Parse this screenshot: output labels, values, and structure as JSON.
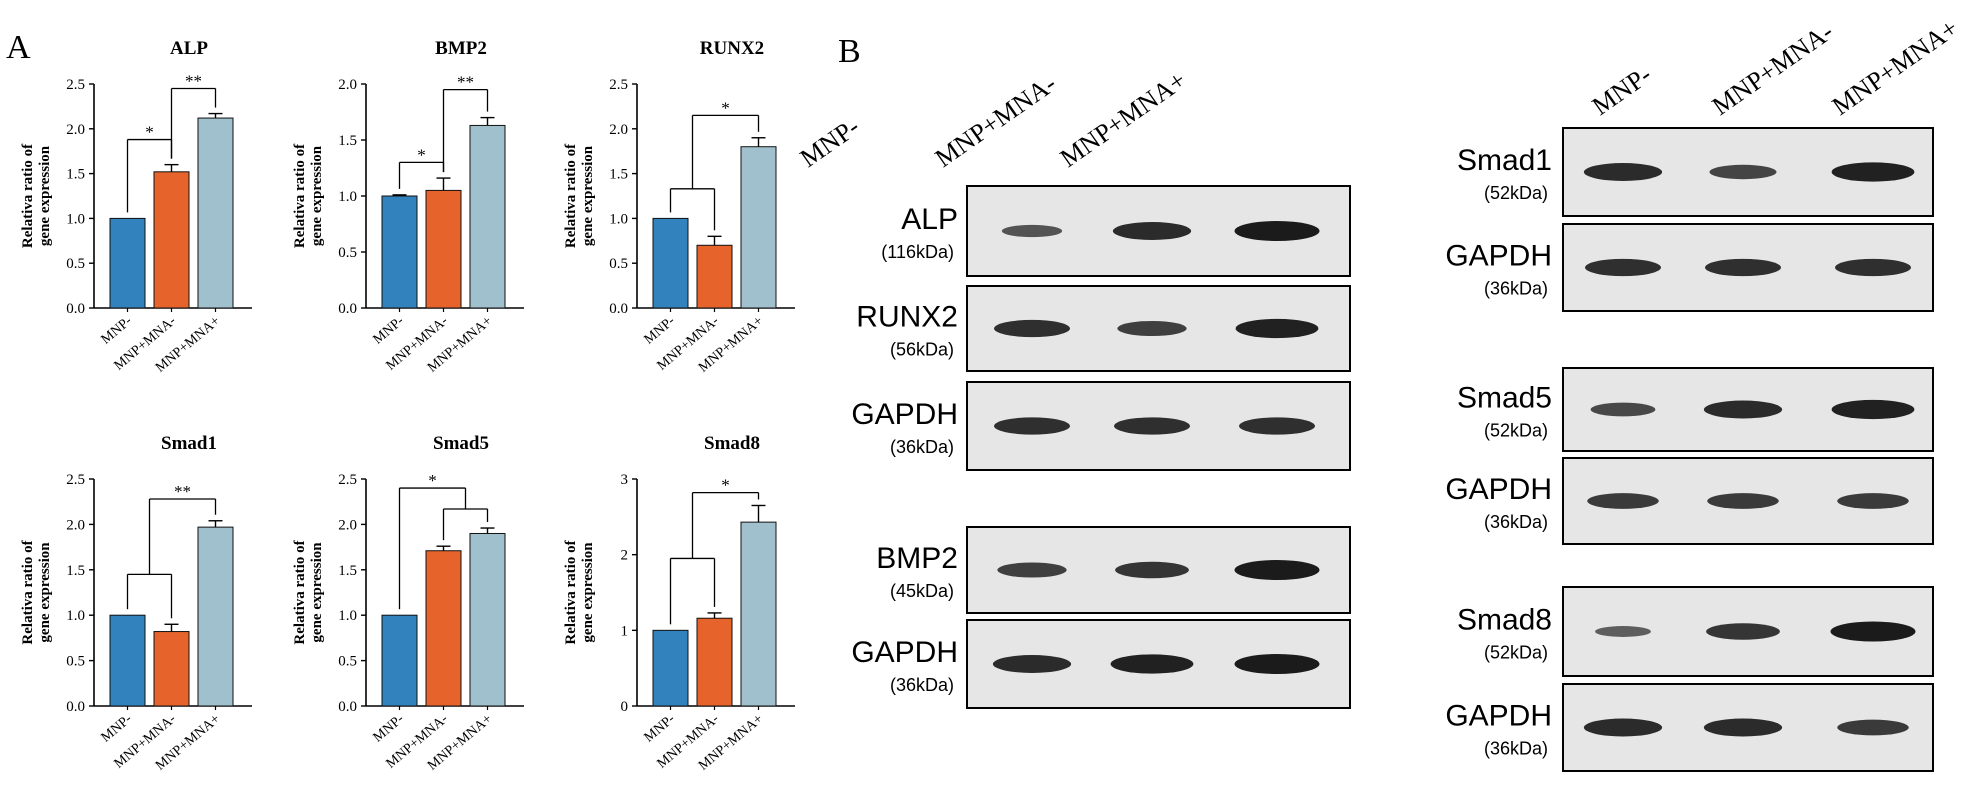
{
  "panel_labels": {
    "a": "A",
    "b": "B"
  },
  "colors": {
    "MNP-": "#3182bd",
    "MNP+MNA-": "#e6642b",
    "MNP+MNA+": "#9fc0cc"
  },
  "chart_data": [
    {
      "type": "bar",
      "title": "ALP",
      "ylabel": "Relativa ratio of gene expression",
      "categories": [
        "MNP-",
        "MNP+MNA-",
        "MNP+MNA+"
      ],
      "values": [
        1.0,
        1.52,
        2.12
      ],
      "errors": [
        0,
        0.08,
        0.05
      ],
      "ylim": [
        0,
        2.5
      ],
      "yticks": [
        "0.0",
        "0.5",
        "1.0",
        "1.5",
        "2.0",
        "2.5"
      ],
      "significance": [
        {
          "label": "*",
          "groups": [
            [
              0
            ],
            [
              1
            ]
          ],
          "level": 1.88
        },
        {
          "label": "**",
          "groups": [
            [
              1
            ],
            [
              2
            ]
          ],
          "level": 2.45
        }
      ]
    },
    {
      "type": "bar",
      "title": "BMP2",
      "ylabel": "Relativa ratio of gene expression",
      "categories": [
        "MNP-",
        "MNP+MNA-",
        "MNP+MNA+"
      ],
      "values": [
        1.0,
        1.05,
        1.63
      ],
      "errors": [
        0.01,
        0.11,
        0.07
      ],
      "ylim": [
        0,
        2.0
      ],
      "yticks": [
        "0.0",
        "0.5",
        "1.0",
        "1.5",
        "2.0"
      ],
      "significance": [
        {
          "label": "*",
          "groups": [
            [
              0
            ],
            [
              1
            ]
          ],
          "level": 1.3
        },
        {
          "label": "**",
          "groups": [
            [
              1
            ],
            [
              2
            ]
          ],
          "level": 1.95
        }
      ]
    },
    {
      "type": "bar",
      "title": "RUNX2",
      "ylabel": "Relativa ratio of gene expression",
      "categories": [
        "MNP-",
        "MNP+MNA-",
        "MNP+MNA+"
      ],
      "values": [
        1.0,
        0.7,
        1.8
      ],
      "errors": [
        0,
        0.1,
        0.1
      ],
      "ylim": [
        0,
        2.5
      ],
      "yticks": [
        "0.0",
        "0.5",
        "1.0",
        "1.5",
        "2.0",
        "2.5"
      ],
      "significance": [
        {
          "label": "*",
          "groups": [
            [
              0,
              1
            ],
            [
              2
            ]
          ],
          "level": 2.15,
          "inner_level": 1.33
        }
      ]
    },
    {
      "type": "bar",
      "title": "Smad1",
      "ylabel": "Relativa ratio of gene expression",
      "categories": [
        "MNP-",
        "MNP+MNA-",
        "MNP+MNA+"
      ],
      "values": [
        1.0,
        0.82,
        1.97
      ],
      "errors": [
        0,
        0.08,
        0.07
      ],
      "ylim": [
        0,
        2.5
      ],
      "yticks": [
        "0.0",
        "0.5",
        "1.0",
        "1.5",
        "2.0",
        "2.5"
      ],
      "significance": [
        {
          "label": "**",
          "groups": [
            [
              0,
              1
            ],
            [
              2
            ]
          ],
          "level": 2.28,
          "inner_level": 1.45
        }
      ]
    },
    {
      "type": "bar",
      "title": "Smad5",
      "ylabel": "Relativa ratio of gene expression",
      "categories": [
        "MNP-",
        "MNP+MNA-",
        "MNP+MNA+"
      ],
      "values": [
        1.0,
        1.71,
        1.9
      ],
      "errors": [
        0,
        0.05,
        0.06
      ],
      "ylim": [
        0,
        2.5
      ],
      "yticks": [
        "0.0",
        "0.5",
        "1.0",
        "1.5",
        "2.0",
        "2.5"
      ],
      "significance": [
        {
          "label": "*",
          "groups": [
            [
              0
            ],
            [
              1,
              2
            ]
          ],
          "level": 2.4,
          "inner_level": 2.17
        }
      ]
    },
    {
      "type": "bar",
      "title": "Smad8",
      "ylabel": "Relativa ratio of gene expression",
      "categories": [
        "MNP-",
        "MNP+MNA-",
        "MNP+MNA+"
      ],
      "values": [
        1.0,
        1.16,
        2.43
      ],
      "errors": [
        0,
        0.07,
        0.22
      ],
      "ylim": [
        0,
        3
      ],
      "yticks": [
        "0",
        "1",
        "2",
        "3"
      ],
      "significance": [
        {
          "label": "*",
          "groups": [
            [
              0,
              1
            ],
            [
              2
            ]
          ],
          "level": 2.82,
          "inner_level": 1.95
        }
      ]
    }
  ],
  "western_blot": {
    "lanes": [
      "MNP-",
      "MNP+MNA-",
      "MNP+MNA+"
    ],
    "left_column": [
      {
        "protein": "ALP",
        "kda": "(116kDa)",
        "band_intensity": [
          0.45,
          0.85,
          1.0
        ]
      },
      {
        "protein": "RUNX2",
        "kda": "(56kDa)",
        "band_intensity": [
          0.8,
          0.65,
          0.95
        ]
      },
      {
        "protein": "GAPDH",
        "kda": "(36kDa)",
        "band_intensity": [
          0.8,
          0.8,
          0.8
        ]
      },
      {
        "protein": "BMP2",
        "kda": "(45kDa)",
        "band_intensity": [
          0.65,
          0.75,
          1.0
        ]
      },
      {
        "protein": "GAPDH",
        "kda": "(36kDa)",
        "band_intensity": [
          0.85,
          0.95,
          1.0
        ]
      }
    ],
    "right_column": [
      {
        "protein": "Smad1",
        "kda": "(52kDa)",
        "band_intensity": [
          0.85,
          0.6,
          0.95
        ]
      },
      {
        "protein": "GAPDH",
        "kda": "(36kDa)",
        "band_intensity": [
          0.8,
          0.8,
          0.8
        ]
      },
      {
        "protein": "Smad5",
        "kda": "(52kDa)",
        "band_intensity": [
          0.55,
          0.85,
          0.95
        ]
      },
      {
        "protein": "GAPDH",
        "kda": "(36kDa)",
        "band_intensity": [
          0.7,
          0.7,
          0.7
        ]
      },
      {
        "protein": "Smad8",
        "kda": "(52kDa)",
        "band_intensity": [
          0.35,
          0.75,
          1.0
        ]
      },
      {
        "protein": "GAPDH",
        "kda": "(36kDa)",
        "band_intensity": [
          0.85,
          0.85,
          0.7
        ]
      }
    ]
  }
}
